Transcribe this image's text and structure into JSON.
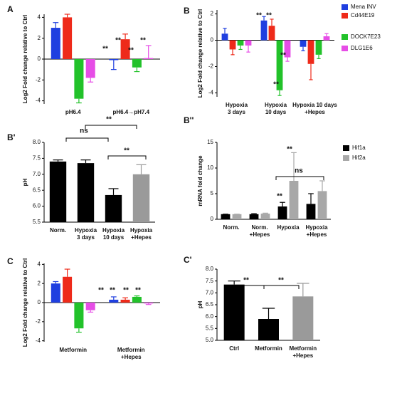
{
  "chart_data": [
    {
      "type": "bar",
      "label": "A",
      "y_label": "Log2 Fold change relative to Ctrl",
      "categories": [
        [
          "pH6.4"
        ],
        [
          "pH6.4→pH7.4"
        ]
      ],
      "series": [
        {
          "color": "#1f3fe0",
          "values": [
            3,
            -0.1
          ],
          "errors": [
            0.5,
            0.9
          ]
        },
        {
          "color": "#ee2a1a",
          "values": [
            4,
            1.9
          ],
          "errors": [
            0.3,
            0.5
          ]
        },
        {
          "color": "#22c22a",
          "values": [
            -3.8,
            -0.8
          ],
          "errors": [
            0.4,
            0.4
          ]
        },
        {
          "color": "#e64de6",
          "values": [
            -1.8,
            0.1
          ],
          "errors": [
            0.4,
            1.2
          ]
        }
      ],
      "ylim": [
        -4.3,
        4.3
      ],
      "yticks": [
        -4,
        -2,
        0,
        2,
        4
      ],
      "annotations": [
        "**",
        "**",
        "**",
        "**"
      ]
    },
    {
      "type": "bar",
      "label": "B",
      "y_label": "Log2 Fold change relative to Ctrl",
      "categories": [
        [
          "Hypoxia",
          "3 days"
        ],
        [
          "Hypoxia",
          "10 days"
        ],
        [
          "Hypoxia 10 days",
          "+Hepes"
        ]
      ],
      "series": [
        {
          "name": "Mena INV",
          "color": "#1f3fe0",
          "values": [
            0.5,
            1.5,
            -0.5
          ],
          "errors": [
            0.4,
            0.3,
            0.3
          ]
        },
        {
          "name": "Cd44E19",
          "color": "#ee2a1a",
          "values": [
            -0.7,
            1.1,
            -1.8
          ],
          "errors": [
            0.4,
            0.5,
            1.2
          ]
        },
        {
          "name": "DOCK7E23",
          "color": "#22c22a",
          "values": [
            -0.4,
            -3.8,
            -1.1
          ],
          "errors": [
            0.3,
            0.4,
            0.3
          ]
        },
        {
          "name": "DLG1E6",
          "color": "#e64de6",
          "values": [
            -0.4,
            -1.3,
            0.3
          ],
          "errors": [
            0.5,
            0.3,
            0.2
          ]
        }
      ],
      "ylim": [
        -4.3,
        2.3
      ],
      "yticks": [
        -4,
        -2,
        0,
        2
      ],
      "annotations": [
        "**",
        "**",
        "**",
        "**"
      ]
    },
    {
      "type": "bar",
      "label": "B'",
      "y_label": "pH",
      "categories": [
        [
          "Norm."
        ],
        [
          "Hypoxia",
          "3 days"
        ],
        [
          "Hypoxia",
          "10 days"
        ],
        [
          "Hypoxia",
          "+Hepes"
        ]
      ],
      "values": [
        7.4,
        7.35,
        6.35,
        7.0
      ],
      "errors": [
        0.05,
        0.1,
        0.2,
        0.3
      ],
      "colors": [
        "#000000",
        "#000000",
        "#000000",
        "#9a9a9a"
      ],
      "ylim": [
        5.5,
        8.0
      ],
      "yticks": [
        5.5,
        {
          "value": 6,
          "label": "6.0"
        },
        6.5,
        {
          "value": 7,
          "label": "7.0"
        },
        7.5,
        {
          "value": 8,
          "label": "8.0"
        }
      ],
      "annotations": [
        "ns",
        "**",
        "**"
      ]
    },
    {
      "type": "bar",
      "label": "B''",
      "y_label": "mRNA fold change",
      "categories": [
        [
          "Norm."
        ],
        [
          "Norm.",
          "+Hepes"
        ],
        [
          "Hypoxia"
        ],
        [
          "Hypoxia",
          "+Hepes"
        ]
      ],
      "series": [
        {
          "name": "Hif1a",
          "color": "#000000",
          "values": [
            1,
            1,
            2.5,
            3
          ],
          "errors": [
            0,
            0.1,
            0.8,
            2
          ]
        },
        {
          "name": "Hif2a",
          "color": "#a8a8a8",
          "values": [
            1,
            1.1,
            7.5,
            5.5
          ],
          "errors": [
            0,
            0.1,
            5.5,
            2
          ]
        }
      ],
      "ylim": [
        0,
        15
      ],
      "yticks": [
        0,
        5,
        10,
        15
      ],
      "annotations": [
        "ns",
        "**",
        "**"
      ]
    },
    {
      "type": "bar",
      "label": "C",
      "y_label": "Log2 Fold change relative to Ctrl",
      "categories": [
        [
          "Metformin"
        ],
        [
          "Metformin",
          "+Hepes"
        ]
      ],
      "series": [
        {
          "color": "#1f3fe0",
          "values": [
            2,
            0.3
          ],
          "errors": [
            0.2,
            0.3
          ]
        },
        {
          "color": "#ee2a1a",
          "values": [
            2.7,
            0.3
          ],
          "errors": [
            0.8,
            0.2
          ]
        },
        {
          "color": "#22c22a",
          "values": [
            -2.7,
            0.6
          ],
          "errors": [
            0.4,
            0.1
          ]
        },
        {
          "color": "#e64de6",
          "values": [
            -0.8,
            -0.1
          ],
          "errors": [
            0.2,
            0.1
          ]
        }
      ],
      "ylim": [
        -4.1,
        4.1
      ],
      "yticks": [
        -4,
        -2,
        0,
        2,
        4
      ],
      "annotations": [
        "**",
        "**",
        "**",
        "**"
      ]
    },
    {
      "type": "bar",
      "label": "C'",
      "y_label": "pH",
      "categories": [
        [
          "Ctrl"
        ],
        [
          "Metformin"
        ],
        [
          "Metformin",
          "+Hepes"
        ]
      ],
      "values": [
        7.35,
        5.9,
        6.85
      ],
      "errors": [
        0.15,
        0.45,
        0.55
      ],
      "colors": [
        "#000000",
        "#000000",
        "#9a9a9a"
      ],
      "ylim": [
        5.0,
        8.0
      ],
      "yticks": [
        {
          "value": 5,
          "label": "5.0"
        },
        5.5,
        {
          "value": 6,
          "label": "6.0"
        },
        6.5,
        {
          "value": 7,
          "label": "7.0"
        },
        7.5,
        {
          "value": 8,
          "label": "8.0"
        }
      ],
      "annotations": [
        "**",
        "**"
      ]
    }
  ]
}
